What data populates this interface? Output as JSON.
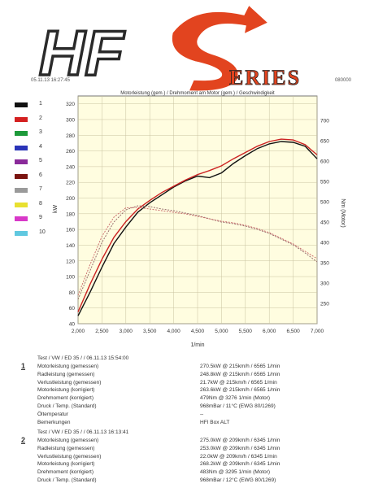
{
  "logo": {
    "text_hf": "HF",
    "text_s": "S",
    "text_eries": "ERIES"
  },
  "header": {
    "date": "05.11.13 16:27:45",
    "id": "080000"
  },
  "chart_data": {
    "type": "line",
    "title": "Motorleistung (gem.) / Drehmoment am Motor (gem.) / Geschwindigkeit",
    "xlabel": "1/min",
    "ylabel_left": "kW",
    "ylabel_right": "Nm (Motor)",
    "xlim": [
      2000,
      7000
    ],
    "ylim_left": [
      40,
      330
    ],
    "ylim_right": [
      200,
      760
    ],
    "x_ticks": [
      "2,000",
      "2,500",
      "3,000",
      "3,500",
      "4,000",
      "4,500",
      "5,000",
      "5,500",
      "6,000",
      "6,500",
      "7,000"
    ],
    "y_left_ticks": [
      "40",
      "60",
      "80",
      "100",
      "120",
      "140",
      "160",
      "180",
      "200",
      "220",
      "240",
      "260",
      "280",
      "300",
      "320"
    ],
    "y_right_ticks": [
      "250",
      "300",
      "350",
      "400",
      "450",
      "500",
      "550",
      "600",
      "650",
      "700"
    ],
    "series": [
      {
        "name": "1",
        "color": "#111111",
        "axis": "left",
        "x": [
          2000,
          2250,
          2500,
          2750,
          3000,
          3250,
          3500,
          3750,
          4000,
          4250,
          4500,
          4750,
          5000,
          5250,
          5500,
          5750,
          6000,
          6250,
          6500,
          6750,
          7000
        ],
        "y": [
          50,
          80,
          112,
          142,
          163,
          182,
          194,
          204,
          214,
          222,
          228,
          226,
          232,
          244,
          254,
          263,
          269,
          272,
          271,
          266,
          250
        ]
      },
      {
        "name": "2",
        "color": "#cc2222",
        "axis": "left",
        "x": [
          2000,
          2250,
          2500,
          2750,
          3000,
          3250,
          3500,
          3750,
          4000,
          4250,
          4500,
          4750,
          5000,
          5250,
          5500,
          5750,
          6000,
          6250,
          6500,
          6750,
          7000
        ],
        "y": [
          55,
          90,
          122,
          150,
          170,
          186,
          197,
          207,
          215,
          223,
          230,
          235,
          241,
          250,
          258,
          266,
          272,
          275,
          274,
          268,
          255
        ]
      },
      {
        "name": "1",
        "color": "#9a7070",
        "axis": "right",
        "dashed": true,
        "x": [
          2000,
          2250,
          2500,
          2750,
          3000,
          3250,
          3500,
          3750,
          4000,
          4250,
          4500,
          4750,
          5000,
          5250,
          5500,
          5750,
          6000,
          6250,
          6500,
          6750,
          7000
        ],
        "y": [
          260,
          330,
          400,
          450,
          480,
          490,
          488,
          482,
          478,
          472,
          466,
          458,
          450,
          446,
          440,
          432,
          422,
          408,
          394,
          374,
          352
        ]
      },
      {
        "name": "2",
        "color": "#cc7070",
        "axis": "right",
        "dashed": true,
        "x": [
          2000,
          2250,
          2500,
          2750,
          3000,
          3250,
          3500,
          3750,
          4000,
          4250,
          4500,
          4750,
          5000,
          5250,
          5500,
          5750,
          6000,
          6250,
          6500,
          6750,
          7000
        ],
        "y": [
          270,
          345,
          415,
          462,
          485,
          486,
          482,
          478,
          474,
          470,
          464,
          458,
          452,
          448,
          442,
          434,
          424,
          410,
          396,
          378,
          360
        ]
      }
    ]
  },
  "legend": [
    {
      "label": "1",
      "color": "#111111"
    },
    {
      "label": "2",
      "color": "#d42020"
    },
    {
      "label": "3",
      "color": "#1d9a3a"
    },
    {
      "label": "4",
      "color": "#2a34b8"
    },
    {
      "label": "5",
      "color": "#8a2a9a"
    },
    {
      "label": "6",
      "color": "#7a1410"
    },
    {
      "label": "7",
      "color": "#9a9a9a"
    },
    {
      "label": "8",
      "color": "#e8e030"
    },
    {
      "label": "9",
      "color": "#d838c8"
    },
    {
      "label": "10",
      "color": "#60c8e0"
    }
  ],
  "runs": [
    {
      "no": "1",
      "header": "Test / VW / ED 35 /  / 06.11.13 15:54:00",
      "rows": [
        {
          "k": "Motorleistung (gemessen)",
          "v": "270.5kW @ 215km/h / 6565 1/min"
        },
        {
          "k": "Radleistung (gemessen)",
          "v": "248.8kW @ 215km/h / 6565 1/min"
        },
        {
          "k": "Verlustleistung (gemessen)",
          "v": "21.7kW @ 215km/h / 6565 1/min"
        },
        {
          "k": "Motorleistung (korrigiert)",
          "v": "263.6kW @ 215km/h / 6565 1/min"
        },
        {
          "k": "Drehmoment (korrigiert)",
          "v": "479Nm @ 3276 1/min (Motor)"
        },
        {
          "k": "Druck / Temp. (Standard)",
          "v": "968mBar / 11°C   (EWG 80/1269)"
        },
        {
          "k": "Öltemperatur",
          "v": "--"
        },
        {
          "k": "Bemerkungen",
          "v": "HFI Box ALT"
        }
      ]
    },
    {
      "no": "2",
      "header": "Test / VW / ED 35 /  / 06.11.13 16:13:41",
      "rows": [
        {
          "k": "Motorleistung (gemessen)",
          "v": "275.0kW @ 209km/h / 6345 1/min"
        },
        {
          "k": "Radleistung (gemessen)",
          "v": "253.0kW @ 209km/h / 6345 1/min"
        },
        {
          "k": "Verlustleistung (gemessen)",
          "v": "22.0kW @ 209km/h / 6345 1/min"
        },
        {
          "k": "Motorleistung (korrigiert)",
          "v": "268.2kW @ 209km/h / 6345 1/min"
        },
        {
          "k": "Drehmoment (korrigiert)",
          "v": "483Nm @ 3295 1/min (Motor)"
        },
        {
          "k": "Druck / Temp. (Standard)",
          "v": "968mBar / 12°C   (EWG 80/1269)"
        }
      ]
    }
  ]
}
